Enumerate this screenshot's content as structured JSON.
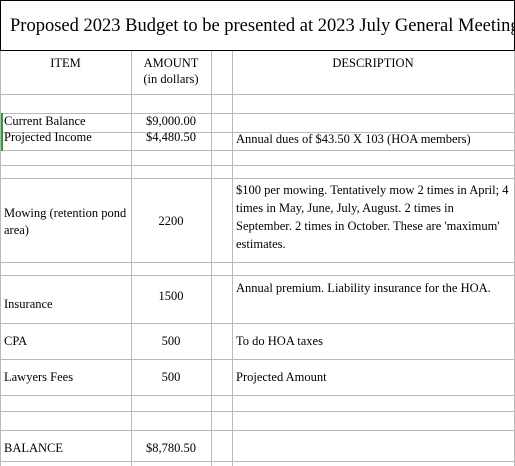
{
  "title": "Proposed 2023 Budget to be presented at 2023 July General Meeting",
  "headers": {
    "item": "ITEM",
    "amount_line1": "AMOUNT",
    "amount_line2": "(in dollars)",
    "description": "DESCRIPTION"
  },
  "rows": {
    "current_balance": {
      "item": "Current Balance",
      "amount": "$9,000.00",
      "description": ""
    },
    "projected_income": {
      "item": "Projected Income",
      "amount": "$4,480.50",
      "description": "Annual dues of $43.50 X 103 (HOA members)"
    },
    "mowing": {
      "item": "Mowing (retention pond area)",
      "amount": "2200",
      "description": "$100 per mowing. Tentatively mow 2 times in April; 4 times in May, June, July, August. 2 times in September. 2 times in October. These are 'maximum' estimates."
    },
    "insurance": {
      "item": "Insurance",
      "amount": "1500",
      "description": "Annual premium. Liability insurance for the HOA."
    },
    "cpa": {
      "item": "CPA",
      "amount": "500",
      "description": "To do HOA taxes"
    },
    "lawyers": {
      "item": "Lawyers Fees",
      "amount": "500",
      "description": "Projected Amount"
    },
    "balance": {
      "item": "BALANCE",
      "amount": "$8,780.50",
      "description": ""
    }
  }
}
